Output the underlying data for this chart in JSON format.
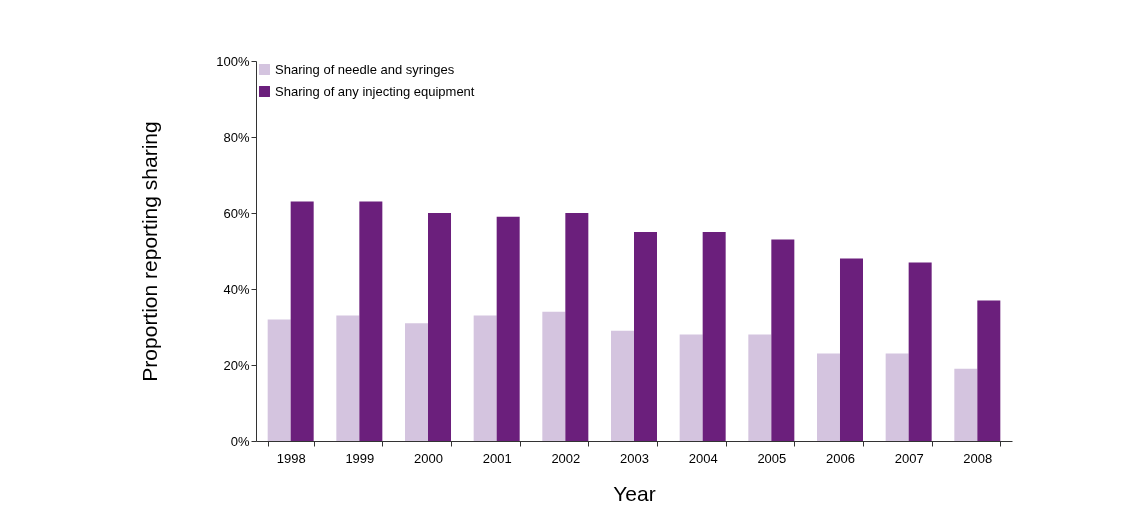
{
  "chart_data": {
    "type": "bar",
    "xlabel": "Year",
    "ylabel": "Proportion reporting sharing",
    "categories": [
      "1998",
      "1999",
      "2000",
      "2001",
      "2002",
      "2003",
      "2004",
      "2005",
      "2006",
      "2007",
      "2008"
    ],
    "series": [
      {
        "name": "Sharing of needle and syringes",
        "color": "#d4c4df",
        "values": [
          32,
          33,
          31,
          33,
          34,
          29,
          28,
          28,
          23,
          23,
          19
        ]
      },
      {
        "name": "Sharing of any injecting equipment",
        "color": "#6b1f7c",
        "values": [
          63,
          63,
          60,
          59,
          60,
          55,
          55,
          53,
          48,
          47,
          37
        ]
      }
    ],
    "ylim": [
      0,
      100
    ],
    "yticks": [
      {
        "value": 0,
        "label": "0%"
      },
      {
        "value": 20,
        "label": "20%"
      },
      {
        "value": 40,
        "label": "40%"
      },
      {
        "value": 60,
        "label": "60%"
      },
      {
        "value": 80,
        "label": "80%"
      },
      {
        "value": 100,
        "label": "100%"
      }
    ],
    "grid": false,
    "legend": "top left"
  }
}
